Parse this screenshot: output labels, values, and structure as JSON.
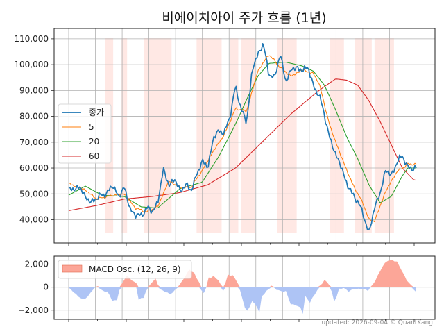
{
  "chart_data": [
    {
      "type": "line",
      "title": "비에이치아이 주가 흐름 (1년)",
      "xlabel": "",
      "ylabel": "",
      "ylim": [
        31000,
        114000
      ],
      "yticks": [
        40000,
        50000,
        60000,
        70000,
        80000,
        90000,
        100000,
        110000
      ],
      "ytick_labels": [
        "40,000",
        "50,000",
        "60,000",
        "70,000",
        "80,000",
        "90,000",
        "100,000",
        "110,000"
      ],
      "xlim": [
        0,
        260
      ],
      "x_gridlines": [
        0,
        20,
        40,
        60,
        80,
        100,
        120,
        140,
        160,
        180,
        200,
        220,
        240
      ],
      "grid": true,
      "legend_position": "center-left",
      "colors": {
        "close": "#1f77b4",
        "ma5": "#ff7f0e",
        "ma20": "#2ca02c",
        "ma60": "#d62728",
        "shade": "#ffe8e4"
      },
      "shaded_ranges": [
        [
          13,
          16
        ],
        [
          19,
          21
        ],
        [
          27,
          37
        ],
        [
          46,
          55
        ],
        [
          58,
          61
        ],
        [
          62,
          67
        ],
        [
          75,
          82
        ],
        [
          94,
          99
        ],
        [
          103,
          109
        ],
        [
          110,
          117
        ]
      ],
      "close_knots": [
        [
          0,
          51500
        ],
        [
          4,
          52500
        ],
        [
          6,
          49000
        ],
        [
          8,
          46500
        ],
        [
          10,
          48500
        ],
        [
          14,
          50500
        ],
        [
          16,
          53500
        ],
        [
          18,
          48500
        ],
        [
          20,
          53000
        ],
        [
          22,
          44000
        ],
        [
          24,
          42000
        ],
        [
          26,
          41500
        ],
        [
          28,
          44500
        ],
        [
          30,
          43500
        ],
        [
          32,
          46000
        ],
        [
          34,
          60000
        ],
        [
          36,
          53000
        ],
        [
          38,
          56000
        ],
        [
          40,
          51000
        ],
        [
          42,
          53500
        ],
        [
          44,
          51500
        ],
        [
          46,
          57000
        ],
        [
          48,
          63000
        ],
        [
          50,
          60000
        ],
        [
          52,
          71500
        ],
        [
          54,
          74500
        ],
        [
          56,
          73500
        ],
        [
          58,
          80000
        ],
        [
          60,
          91500
        ],
        [
          62,
          83000
        ],
        [
          64,
          77500
        ],
        [
          66,
          98000
        ],
        [
          68,
          104000
        ],
        [
          70,
          108000
        ],
        [
          72,
          96500
        ],
        [
          74,
          94500
        ],
        [
          76,
          104500
        ],
        [
          78,
          93500
        ],
        [
          80,
          98000
        ],
        [
          82,
          99000
        ],
        [
          84,
          97500
        ],
        [
          86,
          99500
        ],
        [
          88,
          91500
        ],
        [
          90,
          88500
        ],
        [
          92,
          80500
        ],
        [
          94,
          71000
        ],
        [
          96,
          65500
        ],
        [
          98,
          60500
        ],
        [
          100,
          54000
        ],
        [
          102,
          50000
        ],
        [
          104,
          47000
        ],
        [
          106,
          42000
        ],
        [
          108,
          34500
        ],
        [
          110,
          45000
        ],
        [
          112,
          50000
        ],
        [
          114,
          59500
        ],
        [
          116,
          57000
        ],
        [
          118,
          62000
        ],
        [
          120,
          65000
        ],
        [
          122,
          60000
        ]
      ],
      "ma5_knots": [
        [
          0,
          54000
        ],
        [
          6,
          51500
        ],
        [
          10,
          48000
        ],
        [
          16,
          49500
        ],
        [
          20,
          50000
        ],
        [
          24,
          44500
        ],
        [
          28,
          43000
        ],
        [
          32,
          45000
        ],
        [
          36,
          55000
        ],
        [
          40,
          52500
        ],
        [
          44,
          52500
        ],
        [
          48,
          59000
        ],
        [
          52,
          66500
        ],
        [
          56,
          73000
        ],
        [
          60,
          83000
        ],
        [
          64,
          82000
        ],
        [
          68,
          97500
        ],
        [
          72,
          104000
        ],
        [
          76,
          99000
        ],
        [
          80,
          95500
        ],
        [
          84,
          98000
        ],
        [
          88,
          96500
        ],
        [
          90,
          93000
        ],
        [
          94,
          76000
        ],
        [
          98,
          64500
        ],
        [
          102,
          54000
        ],
        [
          106,
          46000
        ],
        [
          108,
          40000
        ],
        [
          110,
          39500
        ],
        [
          114,
          51000
        ],
        [
          118,
          58500
        ],
        [
          122,
          61500
        ]
      ],
      "ma20_knots": [
        [
          0,
          49500
        ],
        [
          6,
          53000
        ],
        [
          12,
          49500
        ],
        [
          20,
          49000
        ],
        [
          26,
          45000
        ],
        [
          32,
          44500
        ],
        [
          40,
          52000
        ],
        [
          48,
          54500
        ],
        [
          54,
          64500
        ],
        [
          60,
          77000
        ],
        [
          64,
          86500
        ],
        [
          68,
          95500
        ],
        [
          72,
          100500
        ],
        [
          78,
          101000
        ],
        [
          84,
          99500
        ],
        [
          88,
          97500
        ],
        [
          92,
          92000
        ],
        [
          96,
          82500
        ],
        [
          100,
          72000
        ],
        [
          104,
          63500
        ],
        [
          108,
          53500
        ],
        [
          112,
          46500
        ],
        [
          116,
          49000
        ],
        [
          120,
          57000
        ],
        [
          122,
          60000
        ]
      ],
      "ma60_knots": [
        [
          0,
          43500
        ],
        [
          10,
          45500
        ],
        [
          20,
          48000
        ],
        [
          30,
          49000
        ],
        [
          40,
          50500
        ],
        [
          50,
          53500
        ],
        [
          60,
          60000
        ],
        [
          70,
          70500
        ],
        [
          80,
          81000
        ],
        [
          90,
          90000
        ],
        [
          96,
          94500
        ],
        [
          100,
          94000
        ],
        [
          104,
          92000
        ],
        [
          108,
          86000
        ],
        [
          112,
          78000
        ],
        [
          116,
          69000
        ],
        [
          120,
          60000
        ],
        [
          124,
          55500
        ],
        [
          128,
          54500
        ]
      ],
      "series": [
        {
          "name": "종가",
          "color": "#1f77b4"
        },
        {
          "name": "5",
          "color": "#ff7f0e"
        },
        {
          "name": "20",
          "color": "#2ca02c"
        },
        {
          "name": "60",
          "color": "#d62728"
        }
      ]
    },
    {
      "type": "area",
      "ylim": [
        -2800,
        2700
      ],
      "yticks": [
        -2000,
        0,
        2000
      ],
      "ytick_labels": [
        "−2,000",
        "0",
        "2,000"
      ],
      "x_gridlines": [
        0,
        20,
        40,
        60,
        80,
        100,
        120,
        140,
        160,
        180,
        200,
        220,
        240
      ],
      "grid": true,
      "legend_position": "top-left",
      "colors": {
        "positive": "#fca698",
        "negative": "#aec4f5",
        "stroke": "#e3694f"
      },
      "series": [
        {
          "name": "MACD Osc. (12, 26, 9)"
        }
      ],
      "knots": [
        [
          0,
          -100
        ],
        [
          3,
          -600
        ],
        [
          6,
          -1100
        ],
        [
          8,
          -800
        ],
        [
          10,
          -200
        ],
        [
          12,
          100
        ],
        [
          14,
          -300
        ],
        [
          16,
          -400
        ],
        [
          18,
          -1150
        ],
        [
          20,
          -1100
        ],
        [
          21,
          -200
        ],
        [
          22,
          200
        ],
        [
          24,
          1000
        ],
        [
          26,
          700
        ],
        [
          28,
          300
        ],
        [
          29,
          -1100
        ],
        [
          31,
          -900
        ],
        [
          32,
          -300
        ],
        [
          34,
          300
        ],
        [
          36,
          700
        ],
        [
          38,
          -200
        ],
        [
          40,
          -400
        ],
        [
          42,
          -600
        ],
        [
          44,
          -300
        ],
        [
          46,
          200
        ],
        [
          48,
          900
        ],
        [
          50,
          1500
        ],
        [
          52,
          1200
        ],
        [
          54,
          500
        ],
        [
          55,
          -300
        ],
        [
          56,
          -500
        ],
        [
          57,
          -100
        ],
        [
          58,
          800
        ],
        [
          60,
          1000
        ],
        [
          62,
          600
        ],
        [
          64,
          -300
        ],
        [
          66,
          1100
        ],
        [
          68,
          1000
        ],
        [
          70,
          400
        ],
        [
          72,
          -1000
        ],
        [
          73,
          -1800
        ],
        [
          74,
          -2100
        ],
        [
          76,
          -1200
        ],
        [
          78,
          -1700
        ],
        [
          79,
          -2300
        ],
        [
          80,
          -800
        ],
        [
          82,
          -300
        ],
        [
          84,
          100
        ],
        [
          86,
          -200
        ],
        [
          88,
          -300
        ],
        [
          90,
          -400
        ],
        [
          92,
          -1500
        ],
        [
          94,
          -1500
        ],
        [
          96,
          -1800
        ],
        [
          97,
          -2300
        ],
        [
          98,
          -800
        ],
        [
          100,
          -1300
        ],
        [
          102,
          -600
        ],
        [
          104,
          100
        ],
        [
          106,
          600
        ],
        [
          108,
          200
        ],
        [
          109,
          -400
        ],
        [
          110,
          -1200
        ],
        [
          111,
          -800
        ],
        [
          112,
          -200
        ],
        [
          114,
          -100
        ],
        [
          116,
          -300
        ],
        [
          118,
          -200
        ],
        [
          120,
          -200
        ],
        [
          122,
          -100
        ],
        [
          124,
          -300
        ],
        [
          126,
          200
        ],
        [
          128,
          1000
        ],
        [
          130,
          1800
        ],
        [
          132,
          2300
        ],
        [
          134,
          2350
        ],
        [
          136,
          2200
        ],
        [
          138,
          1500
        ],
        [
          140,
          600
        ],
        [
          142,
          100
        ],
        [
          144,
          -400
        ]
      ]
    }
  ],
  "footer": "updated: 2026-09-04 © QuantKang"
}
